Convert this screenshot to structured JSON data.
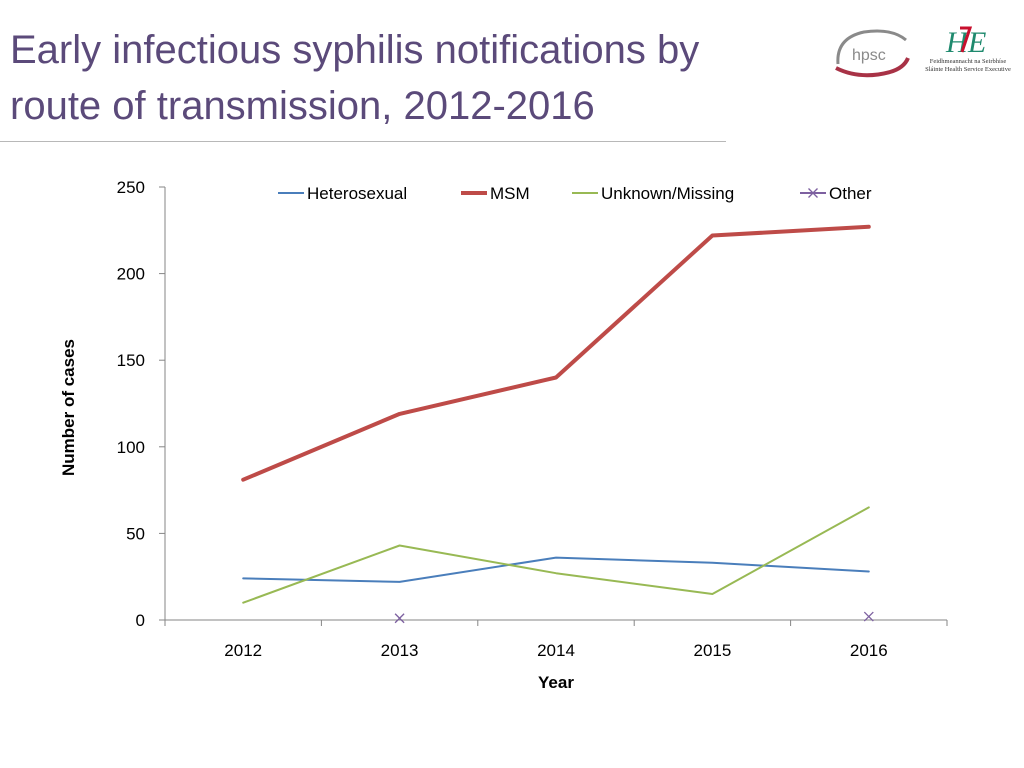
{
  "slide": {
    "title_line1": "Early infectious syphilis notifications by",
    "title_line2": "route of transmission, 2012-2016"
  },
  "logos": {
    "hpsc_text": "hpsc",
    "hse_text": "Feidhmeannacht na Seirbhíse Sláinte Health Service Executive"
  },
  "chart_data": {
    "type": "line",
    "title": "",
    "xlabel": "Year",
    "ylabel": "Number of cases",
    "categories": [
      "2012",
      "2013",
      "2014",
      "2015",
      "2016"
    ],
    "ylim": [
      0,
      250
    ],
    "yticks": [
      0,
      50,
      100,
      150,
      200,
      250
    ],
    "grid": false,
    "legend_position": "top",
    "series": [
      {
        "name": "Heterosexual",
        "values": [
          24,
          22,
          36,
          33,
          28
        ],
        "color": "#4a7ebb",
        "marker": "none"
      },
      {
        "name": "MSM",
        "values": [
          81,
          119,
          140,
          222,
          227
        ],
        "color": "#be4b48",
        "marker": "none"
      },
      {
        "name": "Unknown/Missing",
        "values": [
          10,
          43,
          27,
          15,
          65
        ],
        "color": "#98b954",
        "marker": "none"
      },
      {
        "name": "Other",
        "values": [
          null,
          1,
          null,
          null,
          2
        ],
        "color": "#7d60a0",
        "marker": "x"
      }
    ]
  }
}
